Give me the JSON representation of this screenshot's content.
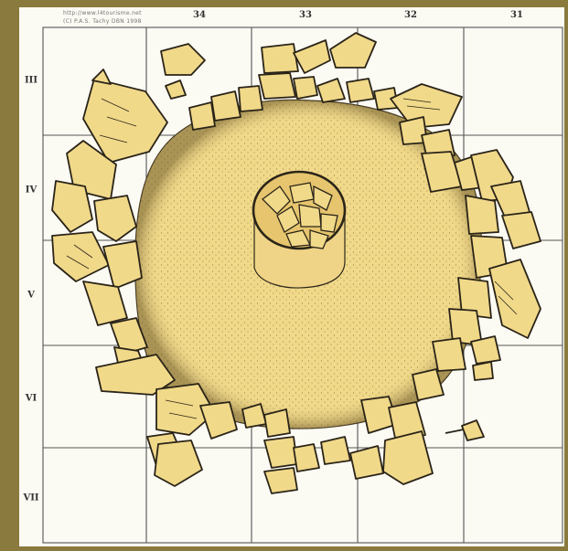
{
  "credit": {
    "line1": "http://www.l4tourisme.net",
    "line2": "(C) P.A.S. Tachy DBN 1998"
  },
  "grid": {
    "columns": [
      "34",
      "33",
      "32",
      "31"
    ],
    "rows": [
      "III",
      "IV",
      "V",
      "VI",
      "VII"
    ]
  },
  "colors": {
    "frame": "#8a7a3e",
    "paper": "#fbfaf3",
    "stone_fill": "#f1d98a",
    "ink": "#2a2418",
    "grid_line": "#555555"
  }
}
